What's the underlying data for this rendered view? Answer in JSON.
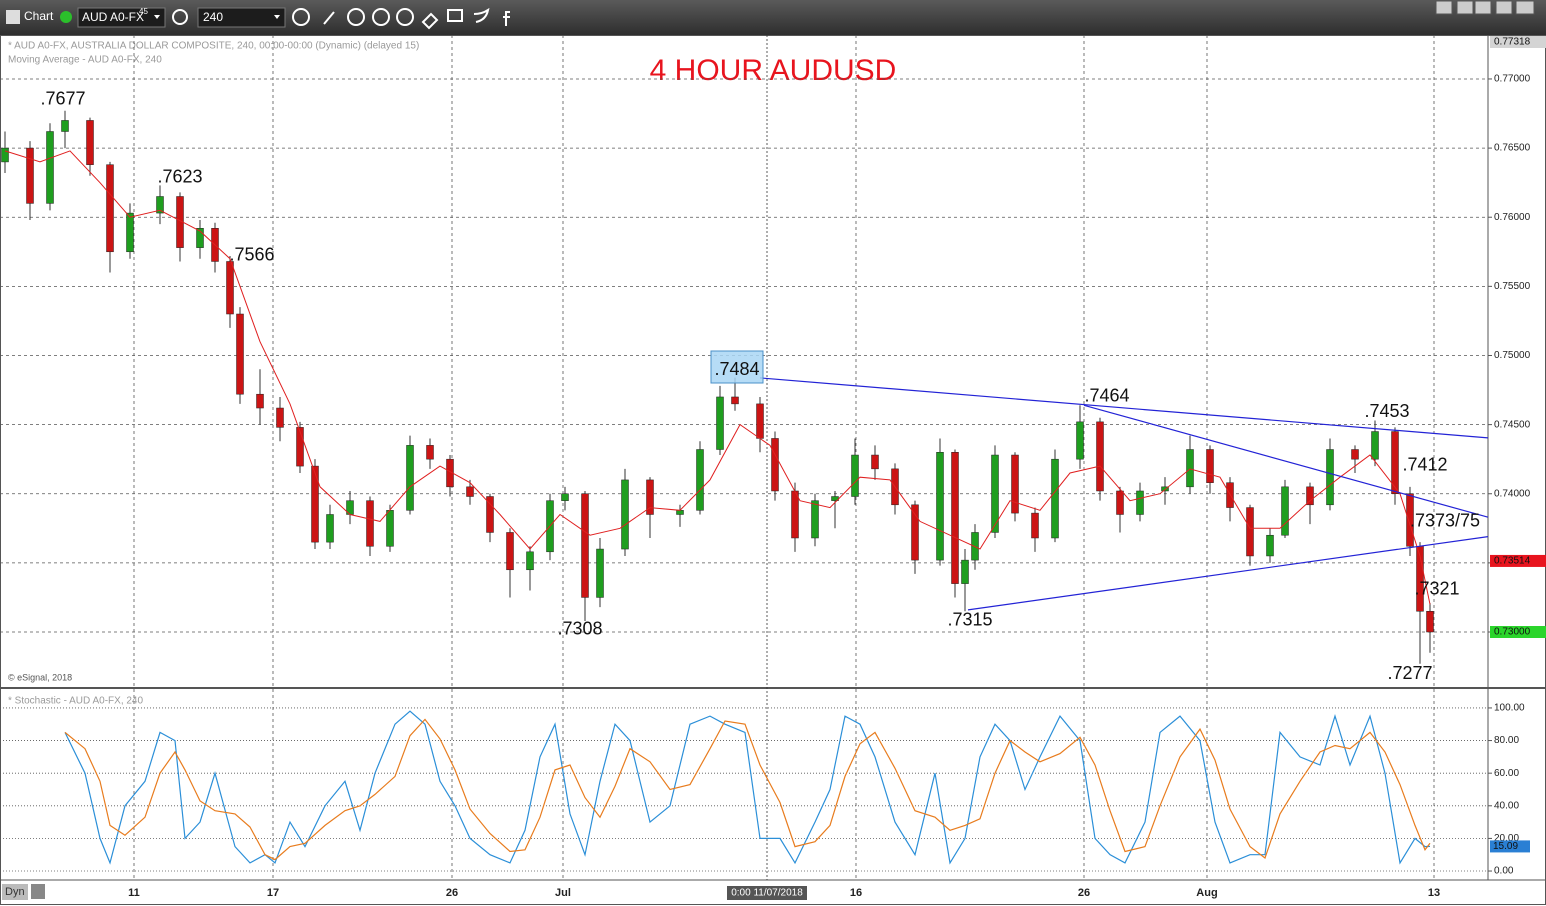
{
  "toolbar": {
    "title": "Chart",
    "symbol": "AUD A0-FX",
    "superscript": "45",
    "interval": "240",
    "status": "Dyn"
  },
  "chart_data": [
    {
      "type": "candlestick",
      "title": "4 HOUR AUDUSD",
      "subtitle": "* AUD A0-FX, AUSTRALIA DOLLAR COMPOSITE, 240, 00:00-00:00 (Dynamic) (delayed 15)",
      "overlay_label": "Moving Average - AUD A0-FX, 240",
      "credit": "© eSignal, 2018",
      "up_color": "#1f9e1f",
      "down_color": "#cc1414",
      "xlim": [
        0,
        297.6
      ],
      "ylim": [
        0.72595,
        0.77318
      ],
      "xticks": [
        {
          "value": 26.8,
          "label": "11"
        },
        {
          "value": 54.6,
          "label": "17"
        },
        {
          "value": 90.4,
          "label": "26"
        },
        {
          "value": 112.6,
          "label": "Jul"
        },
        {
          "value": 171.2,
          "label": "16"
        },
        {
          "value": 216.8,
          "label": "26"
        },
        {
          "value": 241.4,
          "label": "Aug"
        },
        {
          "value": 286.8,
          "label": "13"
        }
      ],
      "yticks": [
        {
          "value": 0.77,
          "label": "0.77000"
        },
        {
          "value": 0.765,
          "label": "0.76500"
        },
        {
          "value": 0.76,
          "label": "0.76000"
        },
        {
          "value": 0.755,
          "label": "0.75500"
        },
        {
          "value": 0.75,
          "label": "0.75000"
        },
        {
          "value": 0.745,
          "label": "0.74500"
        },
        {
          "value": 0.74,
          "label": "0.74000"
        },
        {
          "value": 0.735,
          "label": "0.73500"
        },
        {
          "value": 0.73,
          "label": "0.73000"
        }
      ],
      "grid": true,
      "cursor": {
        "x": 153.4,
        "label": "0:00 11/07/2018"
      },
      "price_markers": [
        {
          "value": 0.77318,
          "label": "0.77318",
          "color": "#d4d4d4"
        },
        {
          "value": 0.73514,
          "label": "0.73514",
          "color": "#e8141e"
        },
        {
          "value": 0.73,
          "label": "0.73000",
          "color": "#2bd52b"
        }
      ],
      "x": [
        1,
        6,
        10,
        13,
        18,
        22,
        26,
        32,
        36,
        40,
        43,
        46,
        48,
        52,
        56,
        60,
        63,
        66,
        70,
        74,
        78,
        82,
        86,
        90,
        94,
        98,
        102,
        106,
        110,
        113,
        117,
        120,
        125,
        130,
        136,
        140,
        144,
        147,
        152,
        155,
        159,
        163,
        167,
        171,
        175,
        179,
        183,
        188,
        191,
        193,
        195,
        199,
        203,
        207,
        211,
        216,
        220,
        224,
        228,
        233,
        238,
        242,
        246,
        250,
        254,
        257,
        262,
        266,
        271,
        275,
        279,
        282,
        284,
        286
      ],
      "open": [
        0.764,
        0.765,
        0.761,
        0.7662,
        0.767,
        0.7638,
        0.7575,
        0.7603,
        0.7615,
        0.7578,
        0.7592,
        0.7568,
        0.753,
        0.7472,
        0.7462,
        0.7448,
        0.742,
        0.7365,
        0.7385,
        0.7395,
        0.7362,
        0.7388,
        0.7435,
        0.7425,
        0.7405,
        0.7398,
        0.7372,
        0.7345,
        0.7358,
        0.7395,
        0.74,
        0.7325,
        0.736,
        0.741,
        0.7385,
        0.7388,
        0.7432,
        0.747,
        0.7465,
        0.744,
        0.7402,
        0.7368,
        0.7395,
        0.7398,
        0.7428,
        0.7418,
        0.7392,
        0.7352,
        0.743,
        0.7335,
        0.7352,
        0.7372,
        0.7428,
        0.7386,
        0.7368,
        0.7425,
        0.7452,
        0.7402,
        0.7385,
        0.7402,
        0.7405,
        0.7432,
        0.7408,
        0.739,
        0.7355,
        0.737,
        0.7405,
        0.7392,
        0.7432,
        0.7425,
        0.7445,
        0.74,
        0.7362,
        0.7315
      ],
      "high": [
        0.7662,
        0.7655,
        0.7668,
        0.7677,
        0.7672,
        0.764,
        0.761,
        0.7623,
        0.7618,
        0.7598,
        0.7596,
        0.7572,
        0.7535,
        0.749,
        0.747,
        0.7452,
        0.7425,
        0.7392,
        0.7402,
        0.7398,
        0.7392,
        0.7442,
        0.744,
        0.7428,
        0.741,
        0.74,
        0.7375,
        0.7362,
        0.74,
        0.7405,
        0.7402,
        0.7368,
        0.7418,
        0.7412,
        0.7392,
        0.7438,
        0.7478,
        0.7484,
        0.747,
        0.7445,
        0.7408,
        0.74,
        0.7402,
        0.744,
        0.7435,
        0.7422,
        0.7395,
        0.744,
        0.7432,
        0.736,
        0.7378,
        0.7435,
        0.743,
        0.739,
        0.7432,
        0.7464,
        0.7455,
        0.7405,
        0.7408,
        0.7412,
        0.7442,
        0.7435,
        0.7412,
        0.7392,
        0.7375,
        0.741,
        0.7408,
        0.744,
        0.7435,
        0.7453,
        0.7448,
        0.7405,
        0.7365,
        0.7321
      ],
      "low": [
        0.7632,
        0.7598,
        0.7605,
        0.765,
        0.763,
        0.756,
        0.757,
        0.7595,
        0.7568,
        0.757,
        0.756,
        0.752,
        0.7465,
        0.745,
        0.7438,
        0.7415,
        0.736,
        0.736,
        0.7378,
        0.7355,
        0.7358,
        0.7385,
        0.7418,
        0.7398,
        0.7392,
        0.7365,
        0.7325,
        0.733,
        0.7352,
        0.7388,
        0.7308,
        0.7318,
        0.7355,
        0.7368,
        0.7376,
        0.7385,
        0.7428,
        0.746,
        0.743,
        0.7395,
        0.7358,
        0.7362,
        0.7375,
        0.7392,
        0.741,
        0.7385,
        0.7342,
        0.7348,
        0.7325,
        0.7315,
        0.7345,
        0.7368,
        0.738,
        0.7358,
        0.7365,
        0.7418,
        0.7395,
        0.7372,
        0.738,
        0.7392,
        0.74,
        0.74,
        0.738,
        0.7348,
        0.735,
        0.7368,
        0.7378,
        0.7388,
        0.7415,
        0.742,
        0.7392,
        0.7355,
        0.7277,
        0.7285
      ],
      "close": [
        0.765,
        0.761,
        0.7662,
        0.767,
        0.7638,
        0.7575,
        0.7603,
        0.7615,
        0.7578,
        0.7592,
        0.7568,
        0.753,
        0.7472,
        0.7462,
        0.7448,
        0.742,
        0.7365,
        0.7385,
        0.7395,
        0.7362,
        0.7388,
        0.7435,
        0.7425,
        0.7405,
        0.7398,
        0.7372,
        0.7345,
        0.7358,
        0.7395,
        0.74,
        0.7325,
        0.736,
        0.741,
        0.7385,
        0.7388,
        0.7432,
        0.747,
        0.7465,
        0.744,
        0.7402,
        0.7368,
        0.7395,
        0.7398,
        0.7428,
        0.7418,
        0.7392,
        0.7352,
        0.743,
        0.7335,
        0.7352,
        0.7372,
        0.7428,
        0.7386,
        0.7368,
        0.7425,
        0.7452,
        0.7402,
        0.7385,
        0.7402,
        0.7405,
        0.7432,
        0.7408,
        0.739,
        0.7355,
        0.737,
        0.7405,
        0.7392,
        0.7432,
        0.7425,
        0.7445,
        0.74,
        0.7362,
        0.7315,
        0.73
      ],
      "moving_average": {
        "color": "#e02020",
        "x": [
          1,
          8,
          14,
          20,
          26,
          32,
          40,
          46,
          52,
          58,
          64,
          70,
          76,
          82,
          88,
          94,
          100,
          106,
          112,
          118,
          124,
          130,
          136,
          142,
          148,
          154,
          160,
          166,
          172,
          178,
          184,
          190,
          196,
          202,
          208,
          214,
          220,
          226,
          232,
          238,
          244,
          250,
          256,
          262,
          268,
          274,
          280,
          284,
          286
        ],
        "values": [
          0.7648,
          0.764,
          0.7648,
          0.7625,
          0.76,
          0.7605,
          0.759,
          0.757,
          0.751,
          0.7465,
          0.7405,
          0.7385,
          0.738,
          0.7405,
          0.742,
          0.7408,
          0.7385,
          0.736,
          0.7385,
          0.737,
          0.7375,
          0.739,
          0.7388,
          0.741,
          0.745,
          0.7435,
          0.7395,
          0.739,
          0.7412,
          0.741,
          0.738,
          0.737,
          0.736,
          0.7395,
          0.7388,
          0.7415,
          0.742,
          0.7395,
          0.74,
          0.7418,
          0.7412,
          0.7375,
          0.7375,
          0.7395,
          0.7412,
          0.7428,
          0.74,
          0.7355,
          0.732
        ]
      },
      "trendlines": {
        "color": "#2323d6",
        "lines": [
          {
            "x": [
              152,
              297.6
            ],
            "y": [
              0.74838,
              0.74404
            ]
          },
          {
            "x": [
              216.8,
              297.6
            ],
            "y": [
              0.7464,
              0.7383
            ]
          },
          {
            "x": [
              193.6,
              297.6
            ],
            "y": [
              0.7316,
              0.7369
            ]
          }
        ]
      },
      "annotations": [
        {
          "text": ".7677",
          "x": 12.6,
          "y": 0.76848
        },
        {
          "text": ".7623",
          "x": 36,
          "y": 0.76284
        },
        {
          "text": ".7566",
          "x": 50.4,
          "y": 0.7572
        },
        {
          "text": ".7484",
          "x": 147.4,
          "y": 0.74895,
          "highlight": "#a9d6f5"
        },
        {
          "text": ".7464",
          "x": 221.4,
          "y": 0.747
        },
        {
          "text": ".7453",
          "x": 277.4,
          "y": 0.74591
        },
        {
          "text": ".7412",
          "x": 285,
          "y": 0.74201
        },
        {
          "text": ".7373/75",
          "x": 289,
          "y": 0.73796
        },
        {
          "text": ".7308",
          "x": 116,
          "y": 0.73015
        },
        {
          "text": ".7315",
          "x": 194,
          "y": 0.7308
        },
        {
          "text": ".7321",
          "x": 287.4,
          "y": 0.73304
        },
        {
          "text": ".7277",
          "x": 282,
          "y": 0.72696
        }
      ]
    },
    {
      "type": "line",
      "title": "* Stochastic - AUD A0-FX, 240",
      "xlim": [
        0,
        297.6
      ],
      "ylim": [
        -5.5,
        111
      ],
      "yticks": [
        {
          "value": 100,
          "label": "100.00"
        },
        {
          "value": 80,
          "label": "80.00"
        },
        {
          "value": 60,
          "label": "60.00"
        },
        {
          "value": 40,
          "label": "40.00"
        },
        {
          "value": 20,
          "label": "20.00"
        },
        {
          "value": 0,
          "label": "0.00"
        }
      ],
      "grid": true,
      "x": [
        13,
        17,
        20,
        22,
        25,
        29,
        32,
        35,
        37,
        40,
        43,
        47,
        50,
        53,
        55,
        58,
        61,
        65,
        69,
        72,
        75,
        79,
        82,
        85,
        88,
        91,
        94,
        98,
        102,
        105,
        108,
        111,
        114,
        117,
        120,
        123,
        126,
        130,
        134,
        138,
        142,
        145,
        149,
        152,
        156,
        159,
        163,
        166,
        169,
        172,
        175,
        179,
        183,
        187,
        190,
        193,
        196,
        199,
        202,
        205,
        208,
        212,
        216,
        219,
        222,
        225,
        229,
        232,
        236,
        240,
        243,
        246,
        250,
        253,
        256,
        260,
        264,
        267,
        270,
        274,
        277,
        280,
        283,
        285,
        286
      ],
      "series": [
        {
          "color": "#2b8fd8",
          "values": [
            85,
            60,
            20,
            5,
            40,
            55,
            85,
            80,
            20,
            30,
            60,
            15,
            5,
            10,
            5,
            30,
            15,
            40,
            55,
            25,
            60,
            90,
            98,
            90,
            55,
            40,
            20,
            10,
            5,
            25,
            70,
            90,
            35,
            10,
            55,
            90,
            80,
            30,
            40,
            90,
            95,
            90,
            85,
            20,
            20,
            5,
            30,
            50,
            95,
            90,
            70,
            30,
            10,
            60,
            5,
            20,
            70,
            90,
            80,
            50,
            70,
            95,
            80,
            20,
            10,
            5,
            30,
            85,
            95,
            80,
            30,
            5,
            10,
            10,
            85,
            70,
            65,
            95,
            65,
            95,
            60,
            5,
            20,
            15,
            15.09
          ]
        },
        {
          "color": "#e87c1e",
          "values": [
            85,
            75,
            55,
            28,
            22,
            33,
            60,
            73,
            62,
            43,
            37,
            35,
            27,
            10,
            7,
            15,
            17,
            28,
            37,
            40,
            47,
            58,
            83,
            93,
            81,
            62,
            38,
            23,
            12,
            13,
            33,
            62,
            65,
            45,
            33,
            52,
            75,
            67,
            50,
            53,
            75,
            92,
            90,
            65,
            42,
            15,
            18,
            28,
            58,
            78,
            85,
            63,
            37,
            33,
            25,
            28,
            32,
            60,
            80,
            73,
            67,
            72,
            82,
            65,
            37,
            12,
            15,
            40,
            70,
            87,
            68,
            38,
            15,
            8,
            35,
            55,
            73,
            77,
            75,
            85,
            73,
            53,
            28,
            13,
            17
          ]
        }
      ],
      "marker": {
        "value": 15.09,
        "label": "15.09",
        "color": "#2a7fd4"
      }
    }
  ]
}
